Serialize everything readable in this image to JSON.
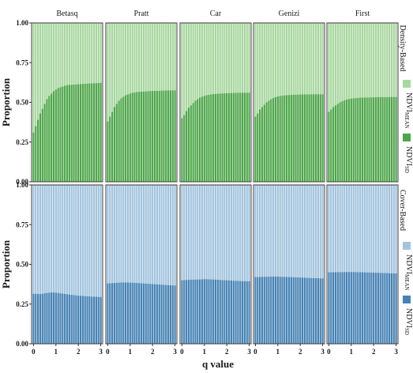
{
  "chart_data": {
    "type": "bar",
    "subtype": "stacked-proportion-facet-grid",
    "xlabel": "q value",
    "ylabel": "Proportion",
    "x": [
      0,
      0.1,
      0.2,
      0.3,
      0.4,
      0.5,
      0.6,
      0.7,
      0.8,
      0.9,
      1.0,
      1.1,
      1.2,
      1.3,
      1.4,
      1.5,
      1.6,
      1.7,
      1.8,
      1.9,
      2.0,
      2.1,
      2.2,
      2.3,
      2.4,
      2.5,
      2.6,
      2.7,
      2.8,
      2.9,
      3.0
    ],
    "x_ticks": [
      "0",
      "1",
      "2",
      "3"
    ],
    "ylim": [
      0,
      1
    ],
    "y_ticks": [
      "0.00",
      "0.25",
      "0.50",
      "0.75",
      "1.00"
    ],
    "columns": [
      "Betasq",
      "Pratt",
      "Car",
      "Genizi",
      "First"
    ],
    "rows": [
      {
        "name": "Density-Based",
        "colors": {
          "upper": "#a8d7a0",
          "lower": "#4ea64a"
        },
        "legend": [
          {
            "label": "NDVI",
            "sub": "MEAN",
            "role": "upper"
          },
          {
            "label": "NDVI",
            "sub": "SD",
            "role": "lower"
          }
        ],
        "lower_values": {
          "Betasq": [
            0.31,
            0.35,
            0.39,
            0.43,
            0.46,
            0.49,
            0.52,
            0.54,
            0.555,
            0.57,
            0.58,
            0.59,
            0.595,
            0.6,
            0.605,
            0.608,
            0.61,
            0.611,
            0.612,
            0.613,
            0.614,
            0.615,
            0.616,
            0.617,
            0.618,
            0.619,
            0.62,
            0.62,
            0.621,
            0.622,
            0.622
          ],
          "Pratt": [
            0.38,
            0.41,
            0.44,
            0.47,
            0.49,
            0.51,
            0.525,
            0.535,
            0.545,
            0.55,
            0.555,
            0.56,
            0.562,
            0.565,
            0.566,
            0.567,
            0.568,
            0.569,
            0.57,
            0.571,
            0.572,
            0.572,
            0.573,
            0.573,
            0.574,
            0.574,
            0.575,
            0.575,
            0.575,
            0.576,
            0.576
          ],
          "Car": [
            0.4,
            0.42,
            0.445,
            0.465,
            0.48,
            0.495,
            0.51,
            0.52,
            0.53,
            0.535,
            0.54,
            0.545,
            0.548,
            0.55,
            0.552,
            0.553,
            0.554,
            0.555,
            0.556,
            0.557,
            0.558,
            0.558,
            0.559,
            0.559,
            0.56,
            0.56,
            0.56,
            0.561,
            0.561,
            0.561,
            0.561
          ],
          "Genizi": [
            0.41,
            0.43,
            0.455,
            0.47,
            0.485,
            0.5,
            0.51,
            0.52,
            0.527,
            0.533,
            0.537,
            0.54,
            0.542,
            0.544,
            0.545,
            0.546,
            0.547,
            0.548,
            0.548,
            0.549,
            0.549,
            0.55,
            0.55,
            0.55,
            0.55,
            0.551,
            0.551,
            0.551,
            0.551,
            0.551,
            0.551
          ],
          "First": [
            0.44,
            0.455,
            0.47,
            0.48,
            0.49,
            0.5,
            0.507,
            0.513,
            0.518,
            0.521,
            0.524,
            0.526,
            0.527,
            0.528,
            0.529,
            0.53,
            0.53,
            0.531,
            0.531,
            0.532,
            0.532,
            0.532,
            0.533,
            0.533,
            0.533,
            0.533,
            0.533,
            0.534,
            0.534,
            0.534,
            0.534
          ]
        }
      },
      {
        "name": "Cover-Based",
        "colors": {
          "upper": "#a3c4de",
          "lower": "#4682b4"
        },
        "legend": [
          {
            "label": "NDVI",
            "sub": "MEAN",
            "role": "upper"
          },
          {
            "label": "NDVI",
            "sub": "SD",
            "role": "lower"
          }
        ],
        "lower_values": {
          "Betasq": [
            0.315,
            0.315,
            0.314,
            0.313,
            0.315,
            0.318,
            0.32,
            0.322,
            0.323,
            0.323,
            0.322,
            0.32,
            0.318,
            0.316,
            0.314,
            0.312,
            0.31,
            0.308,
            0.306,
            0.305,
            0.303,
            0.302,
            0.301,
            0.3,
            0.299,
            0.298,
            0.297,
            0.296,
            0.296,
            0.295,
            0.295
          ],
          "Pratt": [
            0.38,
            0.381,
            0.382,
            0.383,
            0.384,
            0.385,
            0.386,
            0.386,
            0.386,
            0.386,
            0.385,
            0.385,
            0.384,
            0.383,
            0.382,
            0.381,
            0.38,
            0.379,
            0.378,
            0.377,
            0.376,
            0.375,
            0.374,
            0.373,
            0.372,
            0.371,
            0.37,
            0.369,
            0.368,
            0.368,
            0.367
          ],
          "Car": [
            0.4,
            0.401,
            0.402,
            0.403,
            0.403,
            0.404,
            0.404,
            0.405,
            0.405,
            0.406,
            0.407,
            0.407,
            0.406,
            0.405,
            0.405,
            0.404,
            0.403,
            0.402,
            0.401,
            0.4,
            0.4,
            0.399,
            0.398,
            0.397,
            0.396,
            0.396,
            0.395,
            0.394,
            0.394,
            0.393,
            0.393
          ],
          "Genizi": [
            0.42,
            0.42,
            0.421,
            0.421,
            0.422,
            0.422,
            0.422,
            0.423,
            0.423,
            0.423,
            0.423,
            0.422,
            0.422,
            0.421,
            0.421,
            0.42,
            0.42,
            0.419,
            0.418,
            0.418,
            0.417,
            0.417,
            0.416,
            0.415,
            0.415,
            0.414,
            0.414,
            0.413,
            0.413,
            0.412,
            0.412
          ],
          "First": [
            0.45,
            0.45,
            0.45,
            0.451,
            0.451,
            0.451,
            0.451,
            0.452,
            0.452,
            0.452,
            0.452,
            0.452,
            0.451,
            0.451,
            0.451,
            0.45,
            0.45,
            0.449,
            0.449,
            0.448,
            0.448,
            0.447,
            0.447,
            0.446,
            0.446,
            0.445,
            0.445,
            0.444,
            0.444,
            0.443,
            0.443
          ]
        }
      }
    ],
    "grid": false,
    "legend_position": "right"
  }
}
